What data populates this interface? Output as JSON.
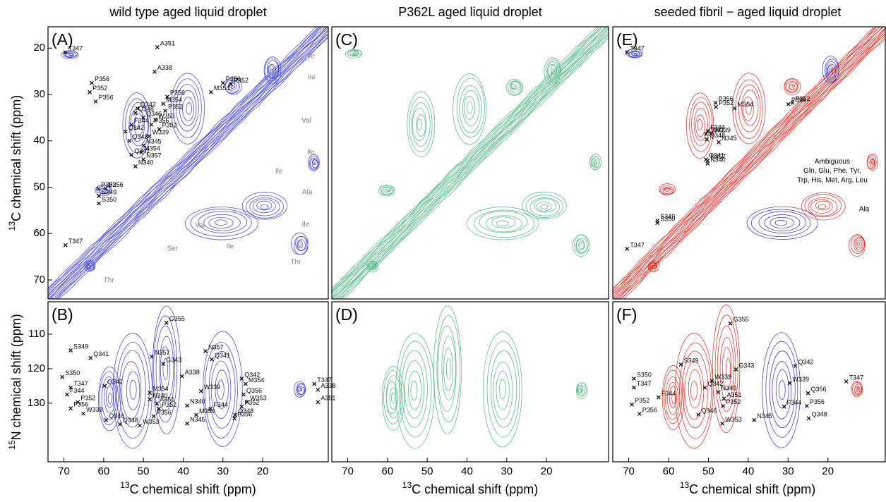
{
  "chart_data": [
    {
      "type": "nmr-contour",
      "label": "(A)",
      "title": "wild type aged liquid droplet",
      "ylabel_sup": "13",
      "ylabel": "C chemical shift (ppm)",
      "xlim": [
        74,
        3.5
      ],
      "ylim": [
        15.4,
        74.1
      ],
      "yticks": [
        20,
        30,
        40,
        50,
        60,
        70
      ],
      "colors": [
        "#3a3ae6"
      ],
      "annotation_color": "#808080",
      "peaks": [
        {
          "label": "T347",
          "x": 69.6,
          "y": 20.9
        },
        {
          "label": "A351",
          "x": 46.5,
          "y": 19.8
        },
        {
          "label": "A338",
          "x": 47.2,
          "y": 25.1
        },
        {
          "label": "Q342",
          "x": 51.5,
          "y": 33
        },
        {
          "label": "Q348",
          "x": 52,
          "y": 34
        },
        {
          "label": "Q346",
          "x": 50,
          "y": 35
        },
        {
          "label": "M354",
          "x": 45,
          "y": 32
        },
        {
          "label": "P356",
          "x": 44,
          "y": 30.5
        },
        {
          "label": "P352",
          "x": 44.5,
          "y": 33.5
        },
        {
          "label": "W353",
          "x": 47,
          "y": 35.5
        },
        {
          "label": "P352",
          "x": 46,
          "y": 37.5
        },
        {
          "label": "P356",
          "x": 48,
          "y": 36.5
        },
        {
          "label": "W339",
          "x": 48.5,
          "y": 39
        },
        {
          "label": "N345",
          "x": 50,
          "y": 41
        },
        {
          "label": "M354",
          "x": 50.5,
          "y": 42.5
        },
        {
          "label": "N357",
          "x": 50,
          "y": 44
        },
        {
          "label": "N340",
          "x": 52,
          "y": 45.5
        },
        {
          "label": "Q341",
          "x": 53,
          "y": 43
        },
        {
          "label": "F344",
          "x": 53,
          "y": 36.5
        },
        {
          "label": "Q342",
          "x": 54.5,
          "y": 38
        },
        {
          "label": "Q348",
          "x": 53.5,
          "y": 40
        },
        {
          "label": "P356",
          "x": 63,
          "y": 27.5
        },
        {
          "label": "P352",
          "x": 63.5,
          "y": 29.5
        },
        {
          "label": "P356",
          "x": 62,
          "y": 31.5
        },
        {
          "label": "M354",
          "x": 33,
          "y": 29.5
        },
        {
          "label": "P356",
          "x": 30,
          "y": 27.5
        },
        {
          "label": "P352",
          "x": 28,
          "y": 27.8
        },
        {
          "label": "P352",
          "x": 61.3,
          "y": 50.3
        },
        {
          "label": "P356",
          "x": 59.5,
          "y": 50.3
        },
        {
          "label": "S349",
          "x": 61.2,
          "y": 51.9
        },
        {
          "label": "S350",
          "x": 61.2,
          "y": 53.5
        },
        {
          "label": "T347",
          "x": 69.6,
          "y": 62.5
        }
      ],
      "annotations": [
        {
          "text": "Ile",
          "x": 7.9,
          "y": 21.8
        },
        {
          "text": "Ile",
          "x": 7.7,
          "y": 26.3
        },
        {
          "text": "Val",
          "x": 9.0,
          "y": 35.7
        },
        {
          "text": "Ile",
          "x": 15.9,
          "y": 46.6
        },
        {
          "text": "Ile",
          "x": 7.9,
          "y": 42.5
        },
        {
          "text": "Ala",
          "x": 8.8,
          "y": 51.1
        },
        {
          "text": "Ile",
          "x": 9.2,
          "y": 58
        },
        {
          "text": "Val",
          "x": 35.8,
          "y": 58.3
        },
        {
          "text": "Ile",
          "x": 28.2,
          "y": 62.8
        },
        {
          "text": "Thr",
          "x": 11.7,
          "y": 66.2
        },
        {
          "text": "Thr",
          "x": 58.7,
          "y": 70.1
        },
        {
          "text": "Ser",
          "x": 42.7,
          "y": 63.3
        }
      ]
    },
    {
      "type": "nmr-contour",
      "label": "(B)",
      "ylabel_sup": "15",
      "ylabel": "N chemical shift (ppm)",
      "xlabel_sup": "13",
      "xlabel": "C chemical shift (ppm)",
      "xlim": [
        74,
        3.5
      ],
      "ylim": [
        100.6,
        147
      ],
      "xticks": [
        70,
        60,
        50,
        40,
        30,
        20
      ],
      "yticks": [
        110,
        120,
        130
      ],
      "colors": [
        "#3a3ae6"
      ],
      "peaks": [
        {
          "label": "G355",
          "x": 44.2,
          "y": 106.7
        },
        {
          "label": "G343",
          "x": 45.0,
          "y": 118.6
        },
        {
          "label": "Q341",
          "x": 63.3,
          "y": 116.9
        },
        {
          "label": "N357",
          "x": 47.9,
          "y": 116.5
        },
        {
          "label": "N357",
          "x": 34.4,
          "y": 114.9
        },
        {
          "label": "Q341",
          "x": 32.8,
          "y": 117.3
        },
        {
          "label": "S349",
          "x": 68.3,
          "y": 114.7
        },
        {
          "label": "A338",
          "x": 6.1,
          "y": 126.1
        },
        {
          "label": "S350",
          "x": 70.4,
          "y": 122.4
        },
        {
          "label": "T347",
          "x": 68.3,
          "y": 125.5
        },
        {
          "label": "Q342",
          "x": 59.8,
          "y": 125
        },
        {
          "label": "M354",
          "x": 48.4,
          "y": 127
        },
        {
          "label": "A338",
          "x": 40.3,
          "y": 122.2
        },
        {
          "label": "W339",
          "x": 35.5,
          "y": 126.5
        },
        {
          "label": "Q342",
          "x": 25.3,
          "y": 122.9
        },
        {
          "label": "M354",
          "x": 24.3,
          "y": 124.4
        },
        {
          "label": "F344",
          "x": 69.2,
          "y": 127.5
        },
        {
          "label": "N340",
          "x": 48.4,
          "y": 128.9
        },
        {
          "label": "N340",
          "x": 39,
          "y": 130.7
        },
        {
          "label": "A351",
          "x": 46.6,
          "y": 130.1
        },
        {
          "label": "Q356",
          "x": 24.8,
          "y": 127.5
        },
        {
          "label": "P352",
          "x": 66.5,
          "y": 129.7
        },
        {
          "label": "M354",
          "x": 36.7,
          "y": 133.4
        },
        {
          "label": "W353",
          "x": 23.9,
          "y": 129.7
        },
        {
          "label": "F344",
          "x": 33.1,
          "y": 131.6
        },
        {
          "label": "P352",
          "x": 46.1,
          "y": 131.6
        },
        {
          "label": "W353",
          "x": 50.9,
          "y": 136.5
        },
        {
          "label": "P356",
          "x": 68.3,
          "y": 131.5
        },
        {
          "label": "Q346",
          "x": 59.4,
          "y": 134.9
        },
        {
          "label": "Q348",
          "x": 55.9,
          "y": 136.1
        },
        {
          "label": "P356",
          "x": 47.4,
          "y": 133.8
        },
        {
          "label": "P356",
          "x": 27.1,
          "y": 134.4
        },
        {
          "label": "W339",
          "x": 65.1,
          "y": 133
        },
        {
          "label": "P352",
          "x": 25.3,
          "y": 131
        },
        {
          "label": "Q348",
          "x": 26.9,
          "y": 133.4
        },
        {
          "label": "N345",
          "x": 39,
          "y": 135.9
        },
        {
          "label": "T347",
          "x": 7,
          "y": 124.4
        },
        {
          "label": "A351",
          "x": 6.1,
          "y": 129.7
        }
      ]
    },
    {
      "type": "nmr-contour",
      "label": "(C)",
      "title": "P362L aged liquid droplet",
      "xlim": [
        74,
        4.4
      ],
      "ylim": [
        15.4,
        74.1
      ],
      "colors": [
        "#4cb67e"
      ]
    },
    {
      "type": "nmr-contour",
      "label": "(D)",
      "xlabel_sup": "13",
      "xlabel": "C chemical shift (ppm)",
      "xlim": [
        74,
        4.4
      ],
      "ylim": [
        100.6,
        147
      ],
      "xticks": [
        70,
        60,
        50,
        40,
        30,
        20
      ],
      "colors": [
        "#4cb67e"
      ]
    },
    {
      "type": "nmr-contour",
      "label": "(E)",
      "title": "seeded fibril − aged liquid droplet",
      "xlim": [
        74,
        5.6
      ],
      "ylim": [
        15.4,
        74.1
      ],
      "colors": [
        "#e8281e",
        "#2e2ee0"
      ],
      "peaks": [
        {
          "label": "T347",
          "x": 70.4,
          "y": 20.9
        },
        {
          "label": "P356",
          "x": 48.2,
          "y": 31.8
        },
        {
          "label": "P352",
          "x": 48.1,
          "y": 32.7
        },
        {
          "label": "M354",
          "x": 43.4,
          "y": 33
        },
        {
          "label": "P356",
          "x": 29.9,
          "y": 32.1
        },
        {
          "label": "P352",
          "x": 28.9,
          "y": 31.8
        },
        {
          "label": "F344",
          "x": 50.2,
          "y": 37.9
        },
        {
          "label": "W339",
          "x": 49.3,
          "y": 38.5
        },
        {
          "label": "Q342",
          "x": 50.6,
          "y": 38.5
        },
        {
          "label": "N345",
          "x": 47.4,
          "y": 40.3
        },
        {
          "label": "Q348",
          "x": 50.4,
          "y": 39.7
        },
        {
          "label": "Q341",
          "x": 50.6,
          "y": 44
        },
        {
          "label": "N357",
          "x": 50.2,
          "y": 44.3
        },
        {
          "label": "N340",
          "x": 50.2,
          "y": 44.9
        },
        {
          "label": "S349",
          "x": 62.8,
          "y": 57.2
        },
        {
          "label": "S350",
          "x": 62.8,
          "y": 57.7
        },
        {
          "label": "T347",
          "x": 70.4,
          "y": 63.3
        }
      ],
      "annotations": [
        {
          "text": "Ambiguous",
          "x": 18.9,
          "y": 44.5
        },
        {
          "text": "Gln, Glu, Phe, Tyr,",
          "x": 18.9,
          "y": 46.5
        },
        {
          "text": "Trp, His, Met, Arg, Leu",
          "x": 18.9,
          "y": 48.5
        },
        {
          "text": "Ala",
          "x": 10.9,
          "y": 54.8
        }
      ]
    },
    {
      "type": "nmr-contour",
      "label": "(F)",
      "xlabel_sup": "13",
      "xlabel": "C chemical shift (ppm)",
      "xlim": [
        74,
        5.6
      ],
      "ylim": [
        100.6,
        147
      ],
      "xticks": [
        70,
        60,
        50,
        40,
        30,
        20
      ],
      "colors": [
        "#e8281e",
        "#2e2ee0"
      ],
      "peaks": [
        {
          "label": "G355",
          "x": 44.5,
          "y": 106.9
        },
        {
          "label": "G343",
          "x": 43.1,
          "y": 120.2
        },
        {
          "label": "S349",
          "x": 56.9,
          "y": 118.8
        },
        {
          "label": "S350",
          "x": 68.7,
          "y": 122.9
        },
        {
          "label": "T347",
          "x": 68.7,
          "y": 125.5
        },
        {
          "label": "Q342",
          "x": 28.2,
          "y": 119.2
        },
        {
          "label": "T347",
          "x": 15.4,
          "y": 123.7
        },
        {
          "label": "Q342",
          "x": 50.9,
          "y": 125.5
        },
        {
          "label": "W339",
          "x": 49.1,
          "y": 123.5
        },
        {
          "label": "N340",
          "x": 47.5,
          "y": 126.8
        },
        {
          "label": "F344",
          "x": 62.5,
          "y": 128.3
        },
        {
          "label": "A351",
          "x": 46.1,
          "y": 128.7
        },
        {
          "label": "P352",
          "x": 46.3,
          "y": 130.8
        },
        {
          "label": "W339",
          "x": 29.6,
          "y": 124.2
        },
        {
          "label": "Q356",
          "x": 25,
          "y": 127.1
        },
        {
          "label": "F344",
          "x": 31,
          "y": 131
        },
        {
          "label": "P356",
          "x": 25.3,
          "y": 130.8
        },
        {
          "label": "P352",
          "x": 69.2,
          "y": 130.4
        },
        {
          "label": "P356",
          "x": 67.3,
          "y": 133.1
        },
        {
          "label": "Q346",
          "x": 52.5,
          "y": 133.3
        },
        {
          "label": "W353",
          "x": 46.5,
          "y": 135.9
        },
        {
          "label": "N345",
          "x": 38.5,
          "y": 134.9
        },
        {
          "label": "Q348",
          "x": 24.8,
          "y": 134.4
        }
      ]
    }
  ]
}
